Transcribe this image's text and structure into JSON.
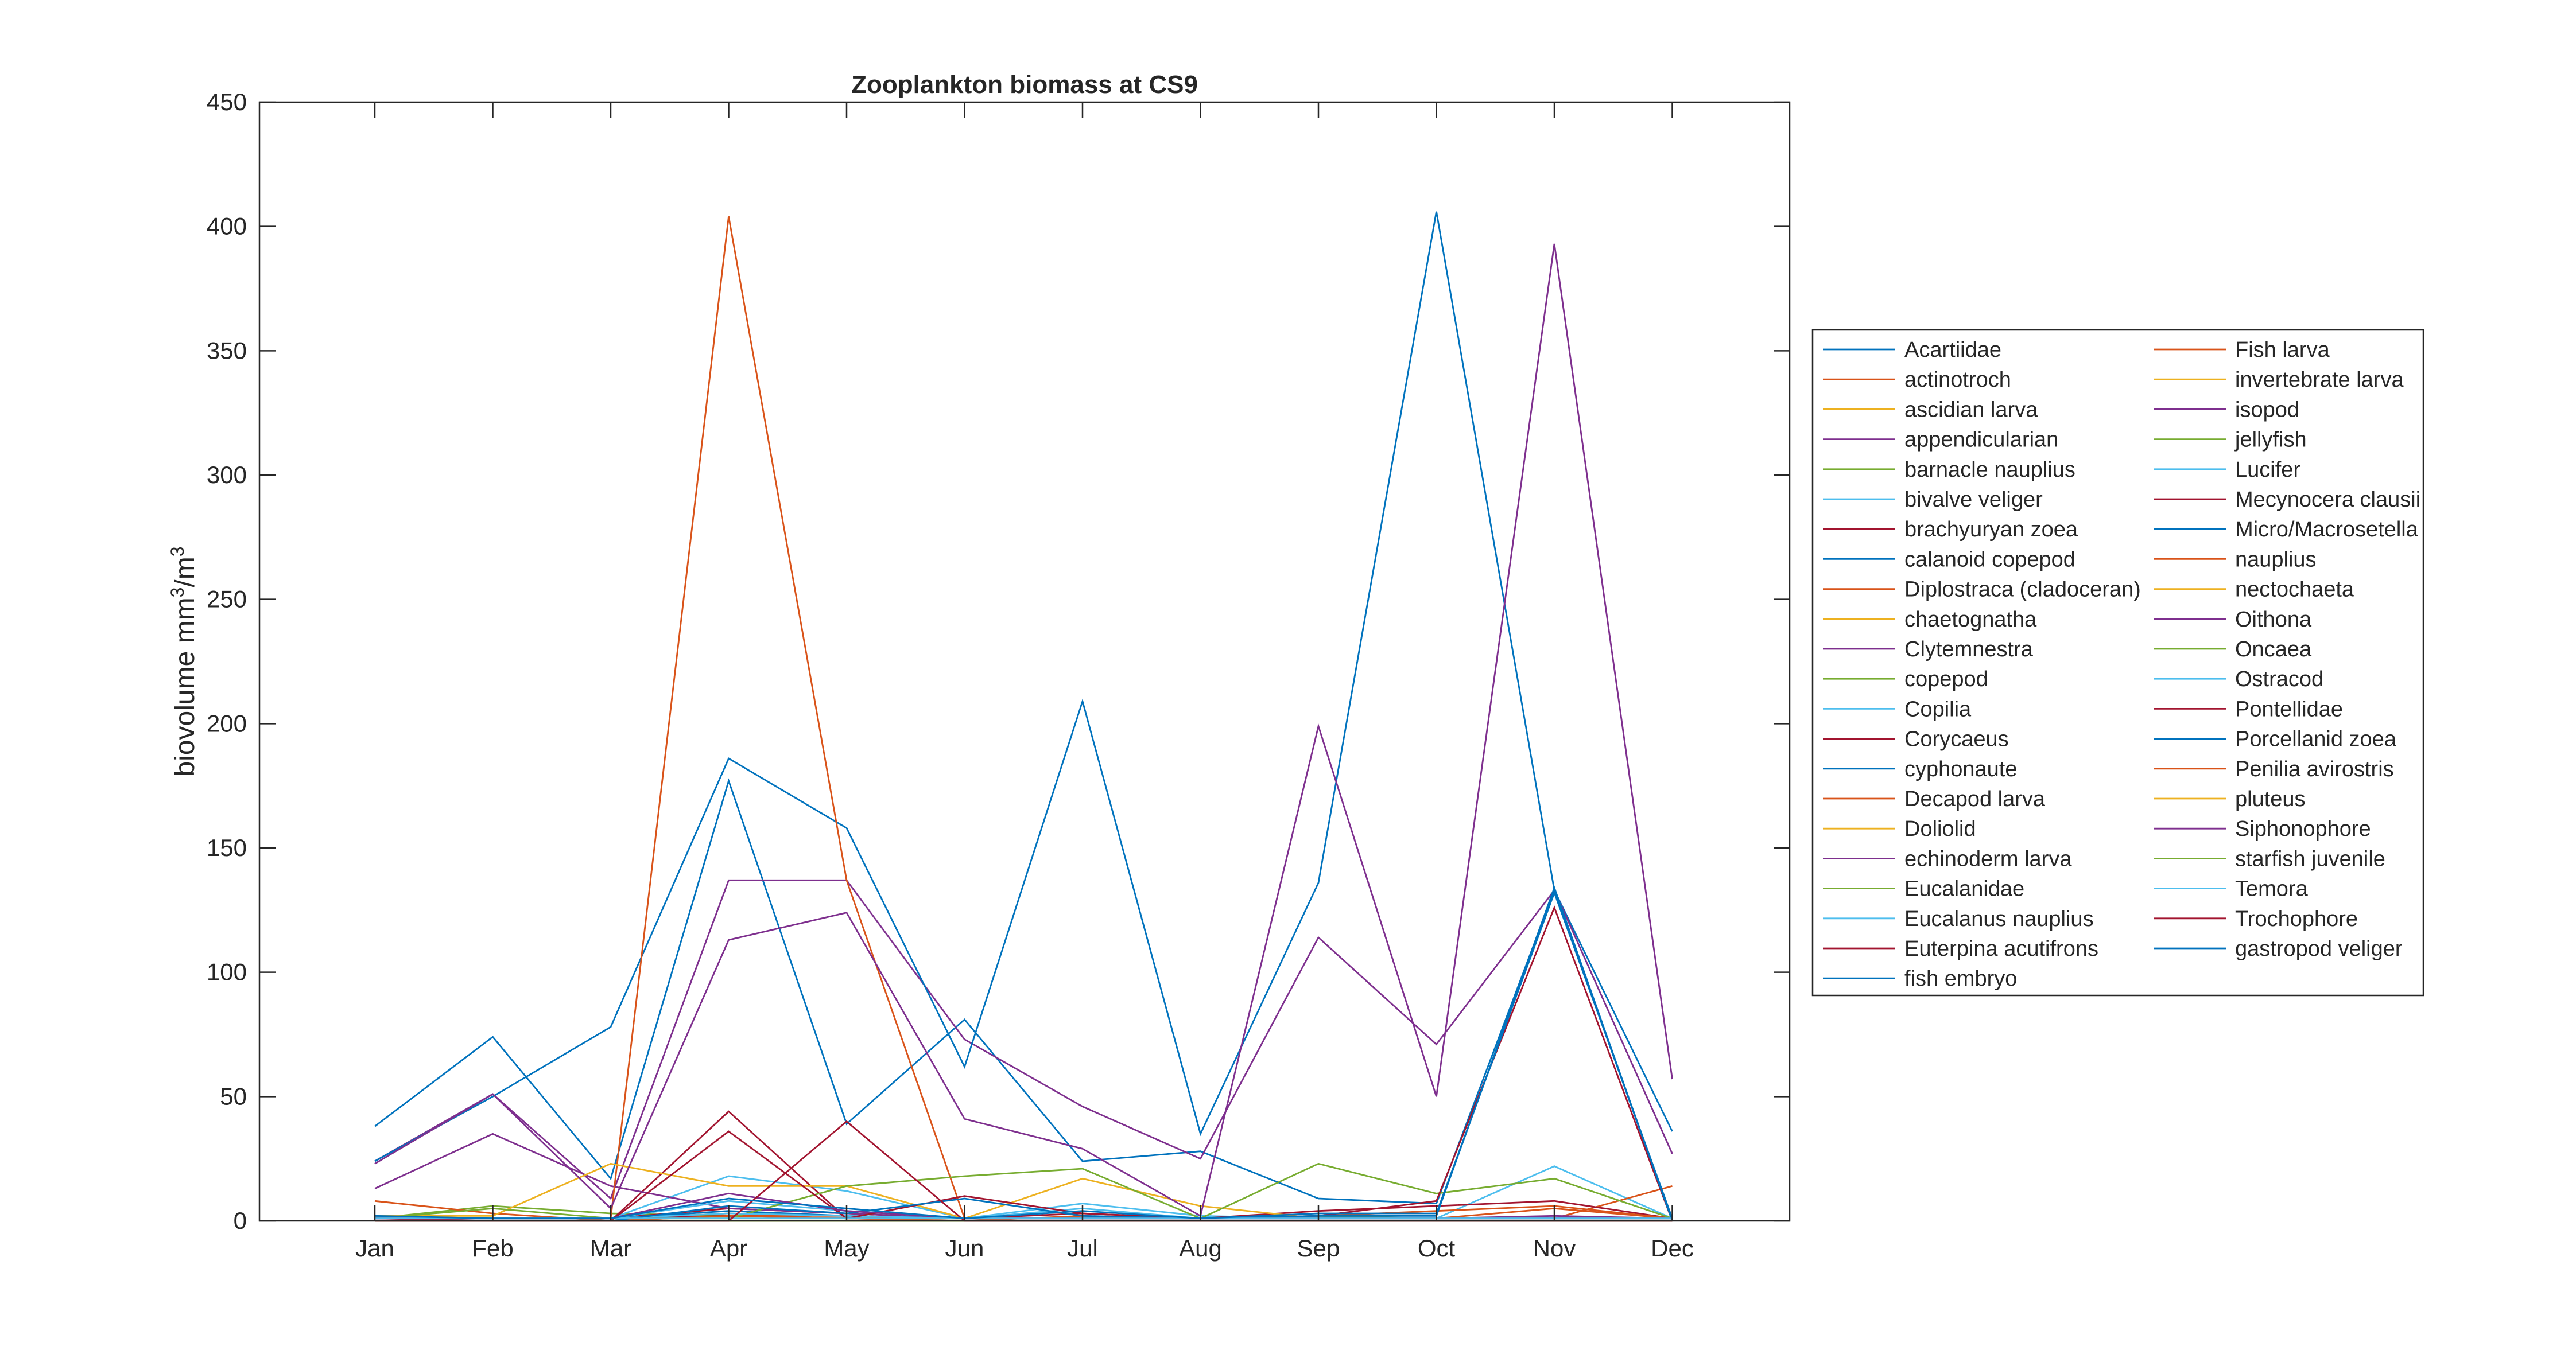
{
  "chart_data": {
    "type": "line",
    "title": "Zooplankton biomass at CS9",
    "ylabel": "biovolume mm³/m³",
    "ylabel_parts": {
      "base": "biovolume mm",
      "sup1": "3",
      "mid": "/m",
      "sup2": "3"
    },
    "xlabel": "",
    "categories": [
      "Jan",
      "Feb",
      "Mar",
      "Apr",
      "May",
      "Jun",
      "Jul",
      "Aug",
      "Sep",
      "Oct",
      "Nov",
      "Dec"
    ],
    "ylim": [
      0,
      450
    ],
    "yticks": [
      0,
      50,
      100,
      150,
      200,
      250,
      300,
      350,
      400,
      450
    ],
    "grid": false,
    "legend_position": "right",
    "series": [
      {
        "name": "Acartiidae",
        "color": "#0072BD",
        "values": [
          38,
          74,
          17,
          177,
          39,
          81,
          24,
          28,
          9,
          7,
          133,
          36
        ]
      },
      {
        "name": "actinotroch",
        "color": "#D95319",
        "values": [
          0,
          0,
          0,
          0,
          0,
          0,
          0,
          0,
          0,
          0,
          0,
          0
        ]
      },
      {
        "name": "ascidian larva",
        "color": "#EDB120",
        "values": [
          0,
          0,
          0,
          0,
          0,
          0,
          0,
          0,
          0,
          0,
          0,
          0
        ]
      },
      {
        "name": "appendicularian",
        "color": "#7E2F8E",
        "values": [
          24,
          51,
          9,
          137,
          137,
          73,
          46,
          25,
          114,
          71,
          133,
          27
        ]
      },
      {
        "name": "barnacle nauplius",
        "color": "#77AC30",
        "values": [
          1,
          6,
          3,
          2,
          1,
          1,
          1,
          1,
          2,
          1,
          1,
          1
        ]
      },
      {
        "name": "bivalve veliger",
        "color": "#4DBEEE",
        "values": [
          1,
          1,
          1,
          18,
          12,
          1,
          7,
          2,
          1,
          1,
          22,
          1
        ]
      },
      {
        "name": "brachyuryan zoea",
        "color": "#A2142F",
        "values": [
          0,
          0,
          0,
          44,
          1,
          0,
          0,
          0,
          0,
          0,
          0,
          0
        ]
      },
      {
        "name": "calanoid copepod",
        "color": "#0072BD",
        "values": [
          24,
          50,
          78,
          186,
          158,
          62,
          209,
          35,
          136,
          406,
          133,
          0
        ]
      },
      {
        "name": "Diplostraca (cladoceran)",
        "color": "#D95319",
        "values": [
          8,
          3,
          0,
          2,
          2,
          1,
          1,
          1,
          1,
          1,
          1,
          14
        ]
      },
      {
        "name": "chaetognatha",
        "color": "#EDB120",
        "values": [
          1,
          1,
          1,
          1,
          1,
          1,
          1,
          1,
          1,
          1,
          1,
          1
        ]
      },
      {
        "name": "Clytemnestra",
        "color": "#7E2F8E",
        "values": [
          0,
          0,
          0,
          0,
          0,
          0,
          0,
          0,
          0,
          0,
          0,
          0
        ]
      },
      {
        "name": "copepod",
        "color": "#77AC30",
        "values": [
          0,
          0,
          0,
          0,
          0,
          0,
          0,
          0,
          0,
          0,
          0,
          0
        ]
      },
      {
        "name": "Copilia",
        "color": "#4DBEEE",
        "values": [
          0,
          0,
          0,
          0,
          0,
          0,
          0,
          0,
          0,
          0,
          0,
          0
        ]
      },
      {
        "name": "Corycaeus",
        "color": "#A2142F",
        "values": [
          2,
          1,
          1,
          5,
          3,
          1,
          3,
          1,
          4,
          6,
          8,
          1
        ]
      },
      {
        "name": "cyphonaute",
        "color": "#0072BD",
        "values": [
          0,
          0,
          0,
          0,
          0,
          0,
          0,
          0,
          0,
          0,
          0,
          0
        ]
      },
      {
        "name": "Decapod larva",
        "color": "#D95319",
        "values": [
          1,
          1,
          1,
          3,
          2,
          1,
          1,
          1,
          1,
          1,
          5,
          1
        ]
      },
      {
        "name": "Doliolid",
        "color": "#EDB120",
        "values": [
          0,
          0,
          0,
          0,
          0,
          0,
          0,
          0,
          0,
          0,
          0,
          0
        ]
      },
      {
        "name": "echinoderm larva",
        "color": "#7E2F8E",
        "values": [
          13,
          35,
          14,
          5,
          3,
          1,
          1,
          1,
          1,
          1,
          2,
          1
        ]
      },
      {
        "name": "Eucalanidae",
        "color": "#77AC30",
        "values": [
          0,
          0,
          0,
          0,
          0,
          0,
          0,
          0,
          0,
          0,
          0,
          0
        ]
      },
      {
        "name": "Eucalanus nauplius",
        "color": "#4DBEEE",
        "values": [
          0,
          0,
          0,
          0,
          0,
          0,
          0,
          0,
          0,
          0,
          0,
          0
        ]
      },
      {
        "name": "Euterpina acutifrons",
        "color": "#A2142F",
        "values": [
          1,
          1,
          1,
          2,
          1,
          1,
          1,
          1,
          1,
          1,
          1,
          1
        ]
      },
      {
        "name": "fish embryo",
        "color": "#0072BD",
        "values": [
          1,
          1,
          1,
          4,
          2,
          1,
          1,
          1,
          1,
          1,
          1,
          1
        ]
      },
      {
        "name": "Fish larva",
        "color": "#D95319",
        "values": [
          1,
          1,
          1,
          404,
          137,
          1,
          1,
          1,
          1,
          1,
          1,
          1
        ]
      },
      {
        "name": "invertebrate larva",
        "color": "#EDB120",
        "values": [
          2,
          2,
          23,
          14,
          14,
          1,
          17,
          6,
          1,
          1,
          1,
          1
        ]
      },
      {
        "name": "isopod",
        "color": "#7E2F8E",
        "values": [
          0,
          0,
          0,
          0,
          0,
          0,
          0,
          0,
          0,
          0,
          0,
          0
        ]
      },
      {
        "name": "jellyfish",
        "color": "#77AC30",
        "values": [
          0,
          0,
          0,
          0,
          0,
          0,
          0,
          0,
          0,
          0,
          0,
          0
        ]
      },
      {
        "name": "Lucifer",
        "color": "#4DBEEE",
        "values": [
          1,
          1,
          1,
          8,
          4,
          1,
          5,
          1,
          1,
          1,
          1,
          1
        ]
      },
      {
        "name": "Mecynocera clausii",
        "color": "#A2142F",
        "values": [
          0,
          0,
          0,
          0,
          0,
          0,
          0,
          0,
          0,
          0,
          0,
          0
        ]
      },
      {
        "name": "Micro/Macrosetella",
        "color": "#0072BD",
        "values": [
          0,
          0,
          0,
          0,
          0,
          0,
          0,
          0,
          0,
          0,
          0,
          0
        ]
      },
      {
        "name": "nauplius",
        "color": "#D95319",
        "values": [
          0,
          0,
          0,
          2,
          1,
          0,
          2,
          1,
          2,
          4,
          6,
          1
        ]
      },
      {
        "name": "nectochaeta",
        "color": "#EDB120",
        "values": [
          0,
          0,
          0,
          0,
          0,
          0,
          0,
          0,
          0,
          0,
          0,
          0
        ]
      },
      {
        "name": "Oithona",
        "color": "#7E2F8E",
        "values": [
          23,
          51,
          5,
          113,
          124,
          41,
          29,
          2,
          199,
          50,
          393,
          57
        ]
      },
      {
        "name": "Oncaea",
        "color": "#77AC30",
        "values": [
          1,
          5,
          1,
          1,
          14,
          18,
          21,
          1,
          23,
          11,
          17,
          1
        ]
      },
      {
        "name": "Ostracod",
        "color": "#4DBEEE",
        "values": [
          1,
          1,
          1,
          3,
          2,
          1,
          1,
          1,
          1,
          1,
          1,
          1
        ]
      },
      {
        "name": "Pontellidae",
        "color": "#A2142F",
        "values": [
          1,
          0,
          0,
          36,
          1,
          10,
          3,
          1,
          2,
          8,
          126,
          0
        ]
      },
      {
        "name": "Porcellanid zoea",
        "color": "#0072BD",
        "values": [
          0,
          0,
          0,
          6,
          3,
          9,
          2,
          1,
          2,
          2,
          134,
          0
        ]
      },
      {
        "name": "Penilia avirostris",
        "color": "#D95319",
        "values": [
          0,
          0,
          0,
          0,
          0,
          0,
          0,
          0,
          0,
          0,
          0,
          0
        ]
      },
      {
        "name": "pluteus",
        "color": "#EDB120",
        "values": [
          0,
          0,
          0,
          0,
          0,
          0,
          0,
          0,
          0,
          0,
          0,
          0
        ]
      },
      {
        "name": "Siphonophore",
        "color": "#7E2F8E",
        "values": [
          1,
          1,
          1,
          11,
          4,
          1,
          1,
          1,
          1,
          1,
          1,
          1
        ]
      },
      {
        "name": "starfish juvenile",
        "color": "#77AC30",
        "values": [
          0,
          0,
          0,
          0,
          0,
          0,
          0,
          0,
          0,
          0,
          0,
          0
        ]
      },
      {
        "name": "Temora",
        "color": "#4DBEEE",
        "values": [
          1,
          1,
          1,
          1,
          1,
          1,
          1,
          1,
          1,
          1,
          1,
          1
        ]
      },
      {
        "name": "Trochophore",
        "color": "#A2142F",
        "values": [
          0,
          0,
          0,
          0,
          40,
          0,
          0,
          0,
          0,
          0,
          0,
          0
        ]
      },
      {
        "name": "gastropod veliger",
        "color": "#0072BD",
        "values": [
          2,
          1,
          1,
          9,
          5,
          1,
          4,
          1,
          3,
          3,
          132,
          1
        ]
      }
    ]
  }
}
